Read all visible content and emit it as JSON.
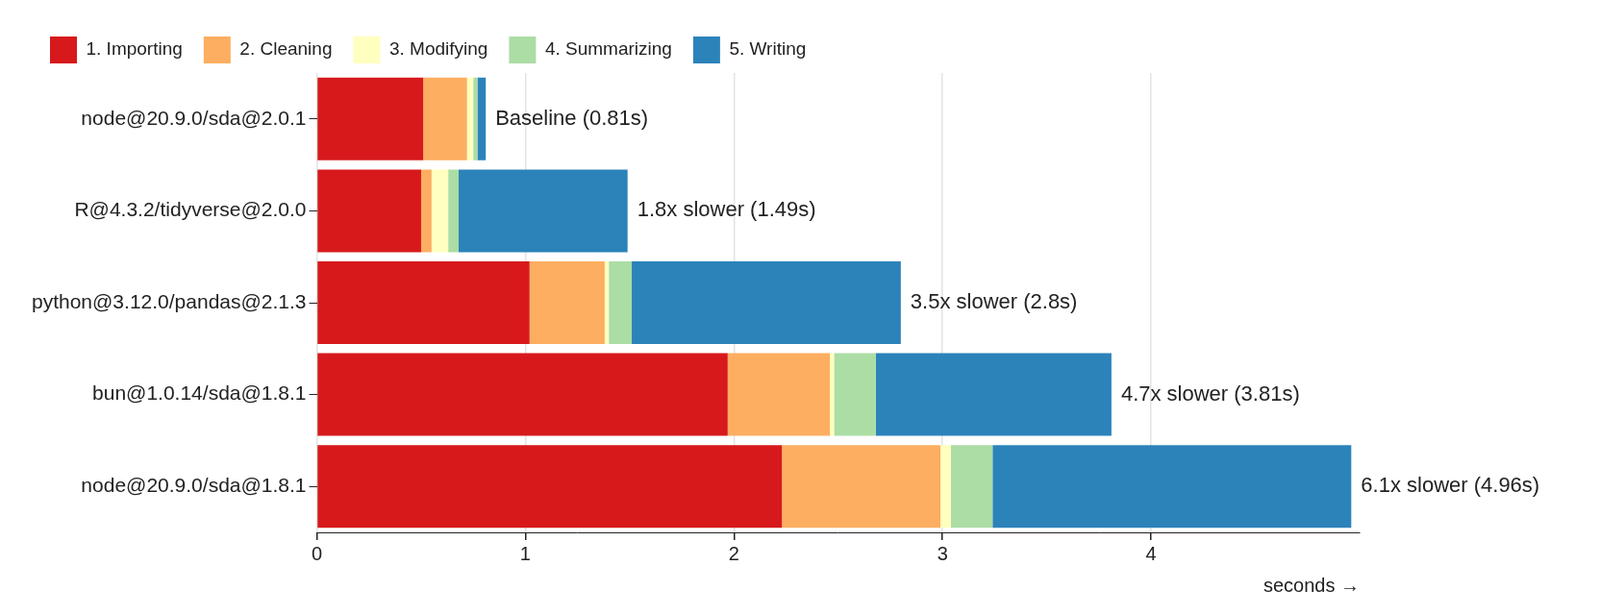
{
  "chart_data": {
    "type": "bar",
    "orientation": "horizontal",
    "stacked": true,
    "categories": [
      "node@20.9.0/sda@2.0.1",
      "R@4.3.2/tidyverse@2.0.0",
      "python@3.12.0/pandas@2.1.3",
      "bun@1.0.14/sda@1.8.1",
      "node@20.9.0/sda@1.8.1"
    ],
    "series": [
      {
        "name": "1. Importing",
        "color": "#d7191c",
        "values": [
          0.51,
          0.5,
          1.02,
          1.97,
          2.23
        ]
      },
      {
        "name": "2. Cleaning",
        "color": "#fdae61",
        "values": [
          0.21,
          0.05,
          0.36,
          0.49,
          0.76
        ]
      },
      {
        "name": "3. Modifying",
        "color": "#ffffbf",
        "values": [
          0.03,
          0.08,
          0.02,
          0.02,
          0.05
        ]
      },
      {
        "name": "4. Summarizing",
        "color": "#abdda4",
        "values": [
          0.02,
          0.05,
          0.11,
          0.2,
          0.2
        ]
      },
      {
        "name": "5. Writing",
        "color": "#2b83ba",
        "values": [
          0.04,
          0.81,
          1.29,
          1.13,
          1.72
        ]
      }
    ],
    "annotations": [
      "Baseline (0.81s)",
      "1.8x slower (1.49s)",
      "3.5x slower (2.8s)",
      "4.7x slower (3.81s)",
      "6.1x slower (4.96s)"
    ],
    "xlabel": "seconds →",
    "xlim": [
      0,
      5
    ],
    "xticks": [
      0,
      1,
      2,
      3,
      4
    ],
    "grid": true,
    "legend": "top-left"
  }
}
